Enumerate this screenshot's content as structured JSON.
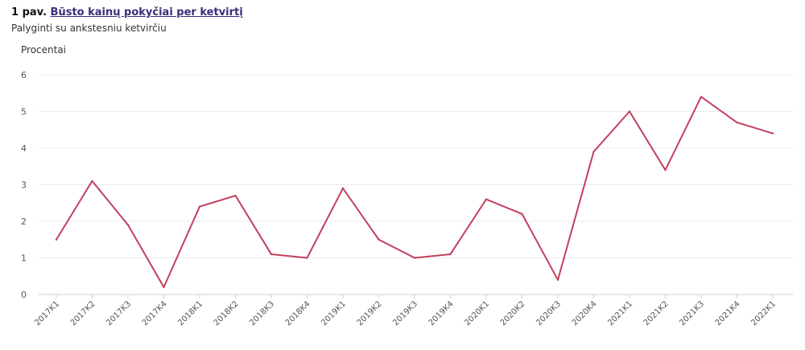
{
  "header": {
    "prefix": "1 pav.",
    "title_link": "Būsto kainų pokyčiai per ketvirtį",
    "subtitle": "Palyginti su ankstesniu ketvirčiu"
  },
  "chart_data": {
    "type": "line",
    "ylabel": "Procentai",
    "ylim": [
      0,
      6
    ],
    "yticks": [
      0,
      1,
      2,
      3,
      4,
      5,
      6
    ],
    "grid": true,
    "color": "#c2405e",
    "categories": [
      "2017K1",
      "2017K2",
      "2017K3",
      "2017K4",
      "2018K1",
      "2018K2",
      "2018K3",
      "2018K4",
      "2019K1",
      "2019K2",
      "2019K3",
      "2019K4",
      "2020K1",
      "2020K2",
      "2020K3",
      "2020K4",
      "2021K1",
      "2021K2",
      "2021K3",
      "2021K4",
      "2022K1"
    ],
    "series": [
      {
        "values": [
          1.5,
          3.1,
          1.9,
          0.2,
          2.4,
          2.7,
          1.1,
          1.0,
          2.9,
          1.5,
          1.0,
          1.1,
          2.6,
          2.2,
          0.4,
          3.9,
          5.0,
          3.4,
          5.4,
          4.7,
          4.4
        ]
      }
    ]
  }
}
